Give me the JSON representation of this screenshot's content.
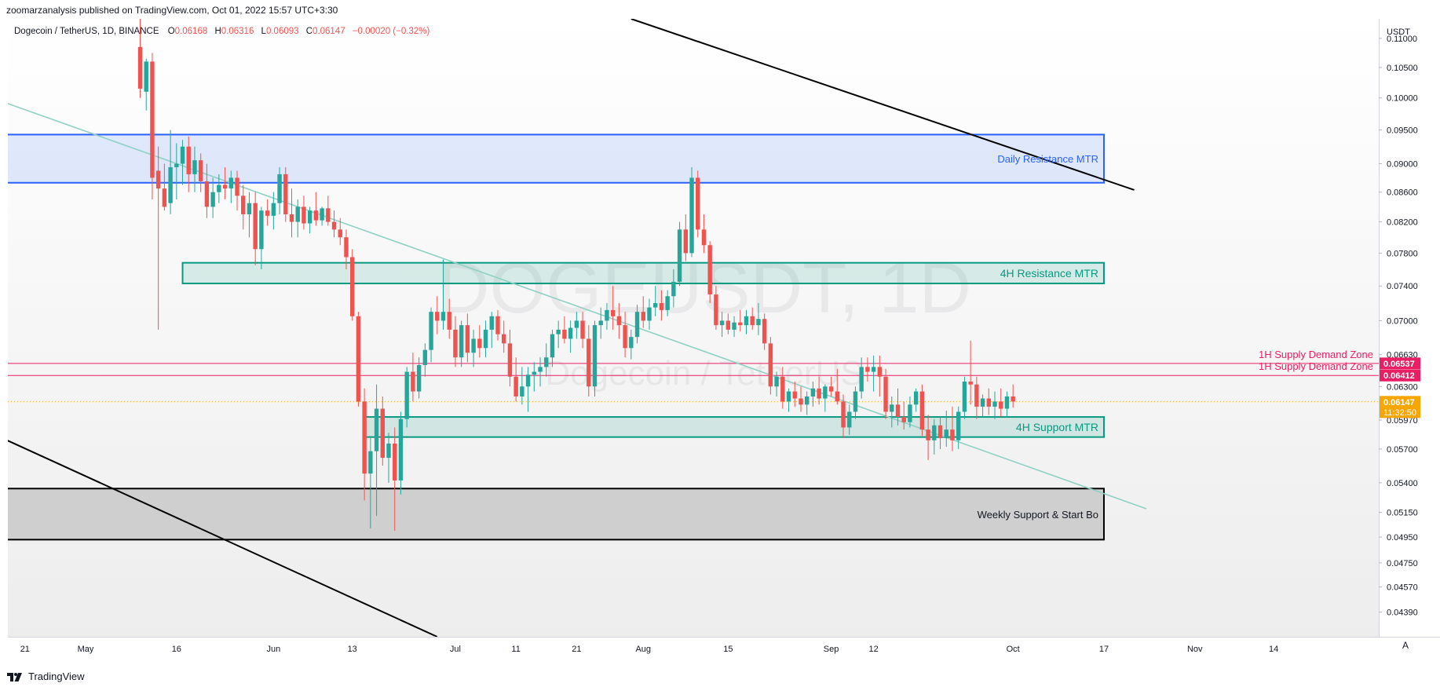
{
  "header": {
    "publish_line": "zoomarzanalysis published on TradingView.com, Oct 01, 2022 15:57 UTC+3:30"
  },
  "legend": {
    "symbol": "Dogecoin / TetherUS, 1D, BINANCE",
    "open_label": "O",
    "open": "0.06168",
    "high_label": "H",
    "high": "0.06316",
    "low_label": "L",
    "low": "0.06093",
    "close_label": "C",
    "close": "0.06147",
    "change": "−0.00020 (−0.32%)"
  },
  "watermark": {
    "ticker": "DOGEUSDT, 1D",
    "name": "Dogecoin / TetherUS"
  },
  "footer": {
    "brand": "TradingView",
    "auto_scale_label": "A"
  },
  "colors": {
    "bull": "#26a69a",
    "bear": "#ef5350",
    "supply": "#e91e63",
    "resistance_blue": "#2962ff",
    "zone_green": "#089981",
    "trendline_teal": "#8fd1c4",
    "channel_black": "#000000",
    "current_price": "#f7a600"
  },
  "chart_data": {
    "type": "candlestick",
    "title": "Dogecoin / TetherUS, 1D, BINANCE",
    "xlabel": "",
    "ylabel": "USDT",
    "ylim": [
      0.0422,
      0.1135
    ],
    "y_axis_ticks": [
      "0.11000",
      "0.10500",
      "0.10000",
      "0.09500",
      "0.09000",
      "0.08600",
      "0.08200",
      "0.07800",
      "0.07400",
      "0.07000",
      "0.06630",
      "0.06300",
      "0.05970",
      "0.05700",
      "0.05400",
      "0.05150",
      "0.04950",
      "0.04750",
      "0.04570",
      "0.04390"
    ],
    "y_axis_unit": "USDT",
    "x_axis_ticks": [
      {
        "label": "21",
        "day": -19
      },
      {
        "label": "May",
        "day": -9
      },
      {
        "label": "16",
        "day": 6
      },
      {
        "label": "Jun",
        "day": 22
      },
      {
        "label": "13",
        "day": 35
      },
      {
        "label": "Jul",
        "day": 52
      },
      {
        "label": "11",
        "day": 62
      },
      {
        "label": "21",
        "day": 72
      },
      {
        "label": "Aug",
        "day": 83
      },
      {
        "label": "15",
        "day": 97
      },
      {
        "label": "Sep",
        "day": 114
      },
      {
        "label": "12",
        "day": 121
      },
      {
        "label": "Oct",
        "day": 144
      },
      {
        "label": "17",
        "day": 159
      },
      {
        "label": "Nov",
        "day": 174
      },
      {
        "label": "14",
        "day": 187
      }
    ],
    "x_axis_note": "day index 0 = 2022-05-11, one candle per day",
    "candles": [
      [
        0.1085,
        0.1135,
        0.1,
        0.1015
      ],
      [
        0.101,
        0.1065,
        0.098,
        0.106
      ],
      [
        0.106,
        0.1075,
        0.085,
        0.088
      ],
      [
        0.089,
        0.0925,
        0.069,
        0.0865
      ],
      [
        0.0865,
        0.09,
        0.0835,
        0.084
      ],
      [
        0.0845,
        0.095,
        0.083,
        0.0895
      ],
      [
        0.0895,
        0.093,
        0.085,
        0.09
      ],
      [
        0.09,
        0.0935,
        0.087,
        0.0925
      ],
      [
        0.0925,
        0.094,
        0.086,
        0.0885
      ],
      [
        0.0885,
        0.0925,
        0.086,
        0.0905
      ],
      [
        0.0905,
        0.0915,
        0.086,
        0.0875
      ],
      [
        0.0875,
        0.09,
        0.0825,
        0.084
      ],
      [
        0.084,
        0.088,
        0.0825,
        0.086
      ],
      [
        0.086,
        0.0885,
        0.0845,
        0.087
      ],
      [
        0.087,
        0.0895,
        0.085,
        0.0865
      ],
      [
        0.0865,
        0.089,
        0.0845,
        0.088
      ],
      [
        0.088,
        0.089,
        0.0835,
        0.0855
      ],
      [
        0.0855,
        0.087,
        0.081,
        0.083
      ],
      [
        0.083,
        0.086,
        0.08,
        0.0845
      ],
      [
        0.0845,
        0.086,
        0.0765,
        0.0785
      ],
      [
        0.0785,
        0.084,
        0.076,
        0.0835
      ],
      [
        0.0835,
        0.085,
        0.0815,
        0.0828
      ],
      [
        0.0828,
        0.086,
        0.081,
        0.0845
      ],
      [
        0.0845,
        0.0895,
        0.083,
        0.0885
      ],
      [
        0.0885,
        0.0895,
        0.082,
        0.083
      ],
      [
        0.083,
        0.0865,
        0.08,
        0.082
      ],
      [
        0.082,
        0.085,
        0.08,
        0.084
      ],
      [
        0.084,
        0.0855,
        0.081,
        0.0818
      ],
      [
        0.0818,
        0.084,
        0.0805,
        0.0835
      ],
      [
        0.0835,
        0.086,
        0.0815,
        0.0822
      ],
      [
        0.0822,
        0.084,
        0.0815,
        0.0838
      ],
      [
        0.0838,
        0.0855,
        0.0815,
        0.082
      ],
      [
        0.082,
        0.0835,
        0.08,
        0.081
      ],
      [
        0.081,
        0.0825,
        0.079,
        0.08
      ],
      [
        0.08,
        0.081,
        0.076,
        0.0775
      ],
      [
        0.0775,
        0.0785,
        0.07,
        0.0705
      ],
      [
        0.0705,
        0.071,
        0.061,
        0.0615
      ],
      [
        0.0615,
        0.0628,
        0.0525,
        0.0548
      ],
      [
        0.0548,
        0.0582,
        0.0502,
        0.0568
      ],
      [
        0.0568,
        0.0632,
        0.0512,
        0.0608
      ],
      [
        0.0608,
        0.062,
        0.0555,
        0.0562
      ],
      [
        0.0562,
        0.0585,
        0.054,
        0.0575
      ],
      [
        0.0575,
        0.059,
        0.05,
        0.0542
      ],
      [
        0.0542,
        0.0605,
        0.053,
        0.0598
      ],
      [
        0.0598,
        0.065,
        0.059,
        0.0645
      ],
      [
        0.0645,
        0.0665,
        0.0615,
        0.0625
      ],
      [
        0.0625,
        0.066,
        0.0618,
        0.0652
      ],
      [
        0.0652,
        0.0675,
        0.064,
        0.0668
      ],
      [
        0.0668,
        0.0715,
        0.0655,
        0.071
      ],
      [
        0.071,
        0.0728,
        0.0685,
        0.07
      ],
      [
        0.07,
        0.0772,
        0.069,
        0.071
      ],
      [
        0.071,
        0.0725,
        0.068,
        0.069
      ],
      [
        0.069,
        0.0705,
        0.065,
        0.066
      ],
      [
        0.066,
        0.07,
        0.065,
        0.0695
      ],
      [
        0.0695,
        0.0708,
        0.0655,
        0.0665
      ],
      [
        0.0665,
        0.069,
        0.065,
        0.068
      ],
      [
        0.068,
        0.0695,
        0.066,
        0.067
      ],
      [
        0.067,
        0.07,
        0.066,
        0.069
      ],
      [
        0.069,
        0.071,
        0.067,
        0.0705
      ],
      [
        0.0705,
        0.0712,
        0.0678,
        0.0685
      ],
      [
        0.0685,
        0.07,
        0.0665,
        0.0675
      ],
      [
        0.0675,
        0.069,
        0.063,
        0.064
      ],
      [
        0.064,
        0.066,
        0.0615,
        0.062
      ],
      [
        0.062,
        0.065,
        0.0612,
        0.063
      ],
      [
        0.063,
        0.065,
        0.0605,
        0.0642
      ],
      [
        0.0642,
        0.0655,
        0.0625,
        0.0645
      ],
      [
        0.0645,
        0.066,
        0.063,
        0.065
      ],
      [
        0.065,
        0.0675,
        0.064,
        0.066
      ],
      [
        0.066,
        0.069,
        0.065,
        0.0685
      ],
      [
        0.0685,
        0.07,
        0.067,
        0.069
      ],
      [
        0.069,
        0.0705,
        0.0675,
        0.068
      ],
      [
        0.068,
        0.07,
        0.0665,
        0.0692
      ],
      [
        0.0692,
        0.071,
        0.068,
        0.07
      ],
      [
        0.07,
        0.071,
        0.067,
        0.068
      ],
      [
        0.068,
        0.0695,
        0.062,
        0.063
      ],
      [
        0.063,
        0.07,
        0.062,
        0.0695
      ],
      [
        0.0695,
        0.0715,
        0.068,
        0.07
      ],
      [
        0.07,
        0.072,
        0.069,
        0.0712
      ],
      [
        0.0712,
        0.074,
        0.069,
        0.0705
      ],
      [
        0.0705,
        0.072,
        0.068,
        0.0695
      ],
      [
        0.0695,
        0.071,
        0.066,
        0.067
      ],
      [
        0.067,
        0.069,
        0.0658,
        0.0682
      ],
      [
        0.0682,
        0.0718,
        0.0675,
        0.071
      ],
      [
        0.071,
        0.0728,
        0.0692,
        0.07
      ],
      [
        0.07,
        0.0725,
        0.069,
        0.0715
      ],
      [
        0.0715,
        0.074,
        0.0705,
        0.072
      ],
      [
        0.072,
        0.0735,
        0.07,
        0.0712
      ],
      [
        0.0712,
        0.0735,
        0.0705,
        0.0728
      ],
      [
        0.0728,
        0.076,
        0.0715,
        0.0745
      ],
      [
        0.0745,
        0.082,
        0.074,
        0.081
      ],
      [
        0.081,
        0.083,
        0.077,
        0.078
      ],
      [
        0.078,
        0.0895,
        0.0775,
        0.088
      ],
      [
        0.088,
        0.089,
        0.08,
        0.081
      ],
      [
        0.081,
        0.083,
        0.078,
        0.079
      ],
      [
        0.079,
        0.0795,
        0.072,
        0.073
      ],
      [
        0.073,
        0.074,
        0.069,
        0.0695
      ],
      [
        0.0695,
        0.071,
        0.0682,
        0.07
      ],
      [
        0.07,
        0.0708,
        0.0685,
        0.069
      ],
      [
        0.069,
        0.0705,
        0.0682,
        0.0698
      ],
      [
        0.0698,
        0.0712,
        0.0688,
        0.0695
      ],
      [
        0.0695,
        0.0712,
        0.0685,
        0.0705
      ],
      [
        0.0705,
        0.0715,
        0.069,
        0.0695
      ],
      [
        0.0695,
        0.072,
        0.0684,
        0.0702
      ],
      [
        0.0702,
        0.0708,
        0.0668,
        0.0675
      ],
      [
        0.0675,
        0.0682,
        0.0622,
        0.063
      ],
      [
        0.063,
        0.0645,
        0.062,
        0.064
      ],
      [
        0.064,
        0.065,
        0.0608,
        0.0615
      ],
      [
        0.0615,
        0.0628,
        0.0605,
        0.0625
      ],
      [
        0.0625,
        0.0635,
        0.061,
        0.0618
      ],
      [
        0.0618,
        0.063,
        0.0605,
        0.0612
      ],
      [
        0.0612,
        0.0625,
        0.0602,
        0.062
      ],
      [
        0.062,
        0.0635,
        0.061,
        0.0628
      ],
      [
        0.0628,
        0.064,
        0.0612,
        0.0618
      ],
      [
        0.0618,
        0.0632,
        0.0605,
        0.063
      ],
      [
        0.063,
        0.064,
        0.062,
        0.0625
      ],
      [
        0.0625,
        0.0648,
        0.0612,
        0.0615
      ],
      [
        0.0615,
        0.0622,
        0.058,
        0.059
      ],
      [
        0.059,
        0.0612,
        0.0583,
        0.0605
      ],
      [
        0.0605,
        0.063,
        0.0598,
        0.0625
      ],
      [
        0.0625,
        0.066,
        0.0618,
        0.065
      ],
      [
        0.065,
        0.066,
        0.0635,
        0.0645
      ],
      [
        0.0645,
        0.0662,
        0.0625,
        0.065
      ],
      [
        0.065,
        0.0662,
        0.062,
        0.064
      ],
      [
        0.064,
        0.0648,
        0.0598,
        0.0605
      ],
      [
        0.0605,
        0.062,
        0.059,
        0.0612
      ],
      [
        0.0612,
        0.0628,
        0.0592,
        0.06
      ],
      [
        0.06,
        0.0615,
        0.0588,
        0.0595
      ],
      [
        0.0595,
        0.062,
        0.059,
        0.0612
      ],
      [
        0.0612,
        0.0628,
        0.0605,
        0.0625
      ],
      [
        0.0625,
        0.0632,
        0.0582,
        0.0588
      ],
      [
        0.0588,
        0.0602,
        0.056,
        0.0578
      ],
      [
        0.0578,
        0.0598,
        0.0565,
        0.0592
      ],
      [
        0.0592,
        0.06,
        0.057,
        0.058
      ],
      [
        0.058,
        0.0606,
        0.0572,
        0.0588
      ],
      [
        0.0588,
        0.061,
        0.0568,
        0.0578
      ],
      [
        0.0578,
        0.061,
        0.057,
        0.0605
      ],
      [
        0.0605,
        0.064,
        0.0598,
        0.0635
      ],
      [
        0.0635,
        0.0678,
        0.0612,
        0.0632
      ],
      [
        0.0632,
        0.064,
        0.0598,
        0.061
      ],
      [
        0.061,
        0.0622,
        0.06,
        0.0618
      ],
      [
        0.0618,
        0.0628,
        0.0602,
        0.061
      ],
      [
        0.061,
        0.0625,
        0.0598,
        0.0615
      ],
      [
        0.0615,
        0.0628,
        0.06,
        0.0608
      ],
      [
        0.0608,
        0.0625,
        0.06,
        0.062
      ],
      [
        0.062,
        0.0632,
        0.0609,
        0.0615
      ]
    ],
    "zones": [
      {
        "label": "Daily Resistance MTR",
        "bottom": 0.0873,
        "top": 0.0943,
        "start_day": -33,
        "end_day": 159
      },
      {
        "label": "4H Resistance MTR",
        "bottom": 0.0743,
        "top": 0.0768,
        "start_day": 7,
        "end_day": 159
      },
      {
        "label": "4H Support MTR",
        "bottom": 0.0581,
        "top": 0.06,
        "start_day": 37,
        "end_day": 159
      },
      {
        "label": "Weekly Support & Start Bo",
        "bottom": 0.0493,
        "top": 0.0535,
        "start_day": -33,
        "end_day": 159
      }
    ],
    "supply_zone_lines": [
      {
        "label": "1H Supply Demand Zone",
        "price": 0.06537
      },
      {
        "label": "1H Supply Demand Zone",
        "price": 0.06412
      }
    ],
    "trendlines": [
      {
        "name": "descending-teal-trendline",
        "from": [
          -33,
          0.103
        ],
        "to": [
          166,
          0.0518
        ]
      },
      {
        "name": "upper-channel-line",
        "from": [
          81,
          0.1135
        ],
        "to": [
          164,
          0.0863
        ]
      },
      {
        "name": "lower-channel-line",
        "from": [
          -33,
          0.0607
        ],
        "to": [
          49,
          0.0422
        ]
      }
    ],
    "axis_price_labels": [
      {
        "price": 0.06537,
        "text": "0.06537",
        "kind": "supply"
      },
      {
        "price": 0.06412,
        "text": "0.06412",
        "kind": "supply"
      },
      {
        "price": 0.06147,
        "text": "0.06147",
        "kind": "current",
        "countdown": "11:32:50"
      }
    ],
    "current_price": 0.06147
  }
}
